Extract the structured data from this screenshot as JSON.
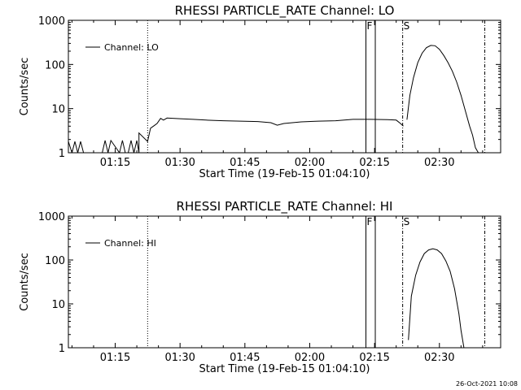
{
  "footer_stamp": "26-Oct-2021 10:08",
  "chart_data": [
    {
      "type": "line",
      "title": "RHESSI PARTICLE_RATE Channel: LO",
      "xlabel": "Start Time (19-Feb-15 01:04:10)",
      "ylabel": "Counts/sec",
      "y_scale": "log",
      "xlim": [
        "01:04:10",
        "02:44:10"
      ],
      "ylim": [
        1,
        1000
      ],
      "x_ticks": [
        "01:15",
        "01:30",
        "01:45",
        "02:00",
        "02:15",
        "02:30"
      ],
      "y_ticks": [
        "1",
        "10",
        "100",
        "1000"
      ],
      "legend": {
        "position": "top-left",
        "entries": [
          "Channel: LO"
        ]
      },
      "markers": [
        {
          "label": "F",
          "style": "solid",
          "time": "02:13:00"
        },
        {
          "label": "",
          "style": "solid",
          "time": "02:15:10"
        },
        {
          "label": "S",
          "style": "dash-dot",
          "time": "02:21:30"
        },
        {
          "label": "",
          "style": "dash-dot",
          "time": "02:40:30"
        },
        {
          "label": "",
          "style": "dotted",
          "time": "01:22:30"
        }
      ],
      "series": [
        {
          "name": "Channel: LO",
          "segments": [
            {
              "x": [
                "01:04:10",
                "01:05:00",
                "01:05:40",
                "01:06:20",
                "01:07:00",
                "01:07:40",
                "01:08:20",
                "01:09:00",
                "01:12:00",
                "01:12:40",
                "01:13:20",
                "01:14:00",
                "01:16:00",
                "01:16:40",
                "01:17:20",
                "01:18:00",
                "01:18:40",
                "01:19:20",
                "01:20:00",
                "01:20:30",
                "01:20:30",
                "01:22:30",
                "01:22:30",
                "01:23:10",
                "01:24:00",
                "01:24:40",
                "01:25:30",
                "01:26:10",
                "01:27:00",
                "01:30:00",
                "01:33:00",
                "01:36:00",
                "01:40:00",
                "01:44:00",
                "01:48:00",
                "01:51:00",
                "01:52:30",
                "01:54:00",
                "01:58:00",
                "02:02:00",
                "02:06:00",
                "02:10:00",
                "02:14:00",
                "02:18:00",
                "02:20:00",
                "02:21:00",
                "02:21:40"
              ],
              "y": [
                1.8,
                1,
                1.8,
                1,
                1.8,
                1,
                1,
                1,
                1,
                1.9,
                1,
                1.9,
                1,
                1.9,
                1,
                1,
                1.9,
                1,
                1.9,
                1,
                2.8,
                1.8,
                1.8,
                3.6,
                4.1,
                4.6,
                6,
                5.5,
                6.1,
                5.9,
                5.7,
                5.5,
                5.3,
                5.2,
                5.1,
                4.8,
                4.2,
                4.6,
                5,
                5.2,
                5.3,
                5.7,
                5.7,
                5.6,
                5.5,
                4.6,
                4
              ]
            },
            {
              "x": [
                "02:22:30",
                "02:23:10",
                "02:24:00",
                "02:25:00",
                "02:26:00",
                "02:27:00",
                "02:28:00",
                "02:29:00",
                "02:30:00",
                "02:31:00",
                "02:32:00",
                "02:33:00",
                "02:34:00",
                "02:35:00",
                "02:36:00",
                "02:37:00",
                "02:37:40",
                "02:38:20",
                "02:39:00"
              ],
              "y": [
                5.6,
                20,
                50,
                110,
                180,
                240,
                270,
                265,
                220,
                160,
                110,
                70,
                40,
                20,
                9,
                4,
                2.5,
                1.3,
                1
              ]
            }
          ]
        }
      ]
    },
    {
      "type": "line",
      "title": "RHESSI PARTICLE_RATE Channel: HI",
      "xlabel": "Start Time (19-Feb-15 01:04:10)",
      "ylabel": "Counts/sec",
      "y_scale": "log",
      "xlim": [
        "01:04:10",
        "02:44:10"
      ],
      "ylim": [
        1,
        1000
      ],
      "x_ticks": [
        "01:15",
        "01:30",
        "01:45",
        "02:00",
        "02:15",
        "02:30"
      ],
      "y_ticks": [
        "1",
        "10",
        "100",
        "1000"
      ],
      "legend": {
        "position": "top-left",
        "entries": [
          "Channel: HI"
        ]
      },
      "markers": [
        {
          "label": "F",
          "style": "solid",
          "time": "02:13:00"
        },
        {
          "label": "",
          "style": "solid",
          "time": "02:15:10"
        },
        {
          "label": "S",
          "style": "dash-dot",
          "time": "02:21:30"
        },
        {
          "label": "",
          "style": "dash-dot",
          "time": "02:40:30"
        },
        {
          "label": "",
          "style": "dotted",
          "time": "01:22:30"
        }
      ],
      "series": [
        {
          "name": "Channel: HI",
          "segments": [
            {
              "x": [
                "02:22:50",
                "02:23:30",
                "02:24:30",
                "02:25:30",
                "02:26:30",
                "02:27:30",
                "02:28:30",
                "02:29:30",
                "02:30:30",
                "02:31:30",
                "02:32:30",
                "02:33:30",
                "02:34:30",
                "02:35:00",
                "02:35:40"
              ],
              "y": [
                1.5,
                15,
                45,
                90,
                140,
                170,
                180,
                170,
                140,
                95,
                55,
                22,
                6,
                2.5,
                1
              ]
            }
          ]
        }
      ]
    }
  ]
}
